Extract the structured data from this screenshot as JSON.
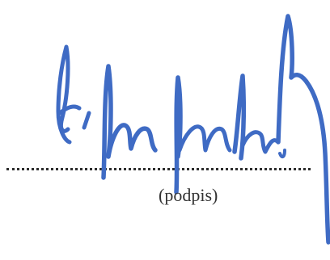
{
  "signature": {
    "caption": "(podpis)",
    "ink_color": "#3f6bc4",
    "line_color": "#2d2d2d"
  }
}
